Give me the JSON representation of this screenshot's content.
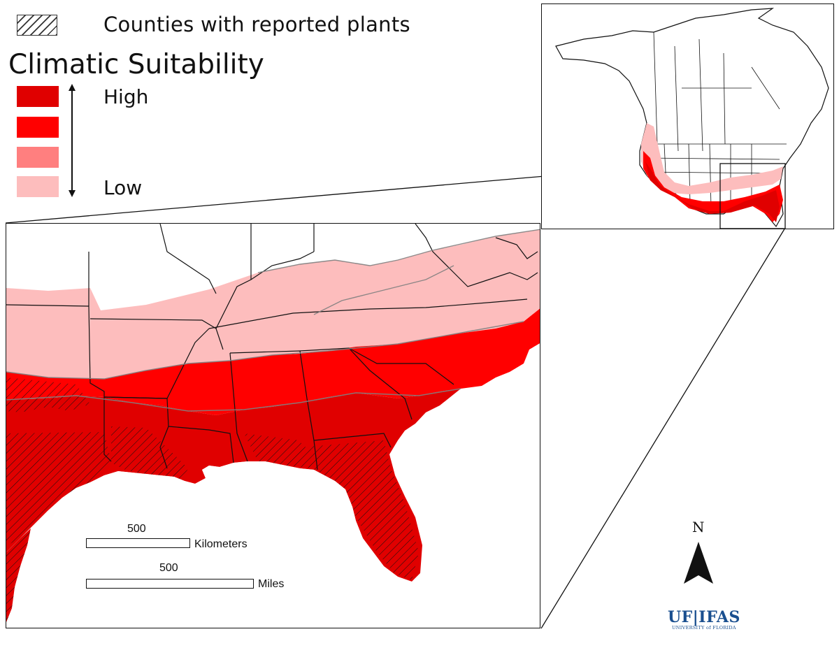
{
  "legend": {
    "hatch_label": "Counties with reported plants",
    "title": "Climatic Suitability",
    "high_label": "High",
    "low_label": "Low",
    "classes": [
      {
        "name": "very-high",
        "color": "#e00000"
      },
      {
        "name": "high",
        "color": "#ff0000"
      },
      {
        "name": "medium",
        "color": "#ff7f7f"
      },
      {
        "name": "low",
        "color": "#fdbdbd"
      }
    ]
  },
  "scalebars": [
    {
      "value": "500",
      "unit": "Kilometers"
    },
    {
      "value": "500",
      "unit": "Miles"
    }
  ],
  "north_arrow": {
    "letter": "N",
    "icon": "north-arrow-icon"
  },
  "logo": {
    "main": "UF|IFAS",
    "sub": "UNIVERSITY of FLORIDA"
  },
  "colors": {
    "very_high": "#e00000",
    "high": "#ff0000",
    "medium": "#ff7f7f",
    "low": "#fdbdbd",
    "border": "#111111",
    "logo_blue": "#1a4f8f"
  }
}
